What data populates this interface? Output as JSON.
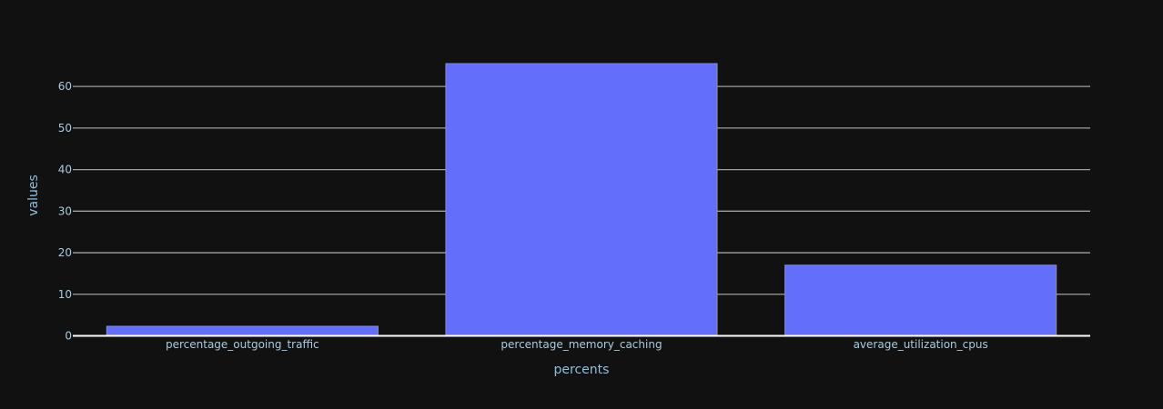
{
  "chart_data": {
    "type": "bar",
    "categories": [
      "percentage_outgoing_traffic",
      "percentage_memory_caching",
      "average_utilization_cpus"
    ],
    "values": [
      2.3,
      65.5,
      17.0
    ],
    "title": "",
    "xlabel": "percents",
    "ylabel": "values",
    "ylim": [
      0,
      69
    ],
    "yticks": [
      0,
      10,
      20,
      30,
      40,
      50,
      60
    ],
    "grid": true,
    "bar_color": "#636efa",
    "background_color": "#111111",
    "gridline_color": "#a0a0a0"
  }
}
